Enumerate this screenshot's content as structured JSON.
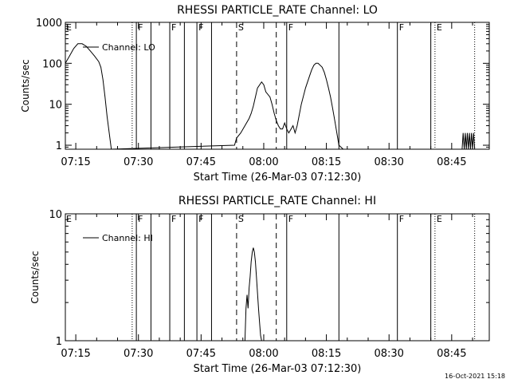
{
  "stamp": "16-Oct-2021 15:18",
  "chart_data": [
    {
      "type": "line",
      "title": "RHESSI PARTICLE_RATE Channel: LO",
      "xlabel": "Start Time (26-Mar-03 07:12:30)",
      "ylabel": "Counts/sec",
      "legend": "Channel: LO",
      "yscale": "log",
      "xlim": [
        "07:12:30",
        "08:54:00"
      ],
      "ylim": [
        0.8,
        1000
      ],
      "y_ticks": [
        {
          "v": 1,
          "label": "1"
        },
        {
          "v": 10,
          "label": "10"
        },
        {
          "v": 100,
          "label": "100"
        },
        {
          "v": 1000,
          "label": "1000"
        }
      ],
      "x_ticks": [
        "07:15",
        "07:30",
        "07:45",
        "08:00",
        "08:15",
        "08:30",
        "08:45"
      ],
      "markers": [
        {
          "t": "07:28:30",
          "style": "dotted",
          "label": ""
        },
        {
          "t": "07:29:30",
          "style": "solid",
          "label": "F"
        },
        {
          "t": "07:33:00",
          "style": "solid",
          "label": ""
        },
        {
          "t": "07:37:30",
          "style": "solid",
          "label": "F"
        },
        {
          "t": "07:41:00",
          "style": "solid",
          "label": ""
        },
        {
          "t": "07:44:00",
          "style": "solid",
          "label": "F"
        },
        {
          "t": "07:47:30",
          "style": "solid",
          "label": ""
        },
        {
          "t": "07:53:30",
          "style": "dashed",
          "label": "S"
        },
        {
          "t": "08:03:00",
          "style": "dashed",
          "label": ""
        },
        {
          "t": "08:05:30",
          "style": "solid",
          "label": "F"
        },
        {
          "t": "08:18:00",
          "style": "solid",
          "label": ""
        },
        {
          "t": "08:32:00",
          "style": "solid",
          "label": "F"
        },
        {
          "t": "08:40:00",
          "style": "solid",
          "label": ""
        },
        {
          "t": "08:41:00",
          "style": "dotted",
          "label": "E"
        },
        {
          "t": "08:50:30",
          "style": "dotted",
          "label": ""
        }
      ],
      "edge_labels": [
        {
          "label": "E",
          "t": "07:12:30"
        }
      ],
      "series": [
        {
          "x": [
            "07:12:30",
            "07:13:30",
            "07:14:30",
            "07:15:30",
            "07:16:30",
            "07:17:30",
            "07:18:30",
            "07:19:30",
            "07:20:30",
            "07:21:00",
            "07:21:30",
            "07:22:00",
            "07:22:30",
            "07:23:30",
            "07:53:00",
            "07:53:30",
            "07:54:30",
            "07:55:30",
            "07:56:30",
            "07:57:00",
            "07:57:30",
            "07:58:00",
            "07:58:30",
            "07:59:30",
            "08:00:00",
            "08:00:30",
            "08:01:30",
            "08:02:00",
            "08:02:30",
            "08:03:00",
            "08:03:30",
            "08:04:00",
            "08:04:30",
            "08:05:00",
            "08:05:30",
            "08:06:00",
            "08:07:00",
            "08:07:30",
            "08:08:00",
            "08:09:00",
            "08:10:00",
            "08:11:00",
            "08:11:30",
            "08:12:00",
            "08:12:30",
            "08:13:00",
            "08:13:30",
            "08:14:00",
            "08:14:30",
            "08:15:00",
            "08:15:30",
            "08:16:00",
            "08:16:30",
            "08:17:00",
            "08:17:30",
            "08:18:00",
            "08:18:30",
            "08:19:00",
            "08:47:30",
            "08:47:45",
            "08:48:00",
            "08:48:15",
            "08:48:30",
            "08:48:45",
            "08:49:00",
            "08:49:15",
            "08:49:30",
            "08:49:45",
            "08:50:00",
            "08:50:15",
            "08:50:30"
          ],
          "y": [
            100,
            150,
            230,
            300,
            300,
            260,
            200,
            150,
            110,
            80,
            40,
            15,
            5,
            0.8,
            1,
            1.5,
            2,
            3,
            4.5,
            6,
            9,
            15,
            25,
            35,
            30,
            20,
            15,
            10,
            6,
            4,
            3,
            2.5,
            2.5,
            3.5,
            2.5,
            2,
            3,
            2,
            3,
            10,
            25,
            50,
            70,
            90,
            100,
            100,
            90,
            80,
            60,
            40,
            25,
            15,
            8,
            4,
            2,
            1,
            0.9,
            0.8,
            0.8,
            2,
            0.8,
            2,
            0.8,
            2,
            0.8,
            2,
            0.8,
            2,
            0.8,
            2,
            0.8
          ]
        }
      ]
    },
    {
      "type": "line",
      "title": "RHESSI PARTICLE_RATE Channel: HI",
      "xlabel": "Start Time (26-Mar-03 07:12:30)",
      "ylabel": "Counts/sec",
      "legend": "Channel: HI",
      "yscale": "log",
      "xlim": [
        "07:12:30",
        "08:54:00"
      ],
      "ylim": [
        1,
        10
      ],
      "y_ticks": [
        {
          "v": 1,
          "label": "1"
        },
        {
          "v": 10,
          "label": "10"
        }
      ],
      "x_ticks": [
        "07:15",
        "07:30",
        "07:45",
        "08:00",
        "08:15",
        "08:30",
        "08:45"
      ],
      "markers": [
        {
          "t": "07:28:30",
          "style": "dotted",
          "label": ""
        },
        {
          "t": "07:29:30",
          "style": "solid",
          "label": "F"
        },
        {
          "t": "07:33:00",
          "style": "solid",
          "label": ""
        },
        {
          "t": "07:37:30",
          "style": "solid",
          "label": "F"
        },
        {
          "t": "07:41:00",
          "style": "solid",
          "label": ""
        },
        {
          "t": "07:44:00",
          "style": "solid",
          "label": "F"
        },
        {
          "t": "07:47:30",
          "style": "solid",
          "label": ""
        },
        {
          "t": "07:53:30",
          "style": "dashed",
          "label": "S"
        },
        {
          "t": "08:03:00",
          "style": "dashed",
          "label": ""
        },
        {
          "t": "08:05:30",
          "style": "solid",
          "label": "F"
        },
        {
          "t": "08:18:00",
          "style": "solid",
          "label": ""
        },
        {
          "t": "08:32:00",
          "style": "solid",
          "label": "F"
        },
        {
          "t": "08:40:00",
          "style": "solid",
          "label": ""
        },
        {
          "t": "08:41:00",
          "style": "dotted",
          "label": "E"
        },
        {
          "t": "08:50:30",
          "style": "dotted",
          "label": ""
        }
      ],
      "edge_labels": [
        {
          "label": "E",
          "t": "07:12:30"
        }
      ],
      "series": [
        {
          "x": [
            "07:55:30",
            "07:55:45",
            "07:56:00",
            "07:56:15",
            "07:56:30",
            "07:56:45",
            "07:57:00",
            "07:57:15",
            "07:57:30",
            "07:57:45",
            "07:58:00",
            "07:58:15",
            "07:58:30",
            "07:58:45",
            "07:59:00",
            "07:59:15",
            "07:59:30"
          ],
          "y": [
            1,
            1.8,
            2.3,
            1.8,
            2.6,
            3.2,
            4.2,
            5,
            5.4,
            5,
            4.2,
            3.2,
            2.4,
            1.8,
            1.4,
            1.1,
            1
          ]
        }
      ]
    }
  ]
}
